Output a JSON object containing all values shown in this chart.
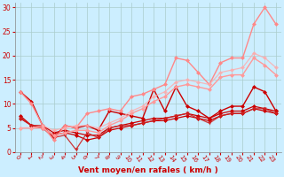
{
  "bg_color": "#cceeff",
  "grid_color": "#aacccc",
  "xlabel": "Vent moyen/en rafales ( km/h )",
  "xlabel_color": "#cc0000",
  "tick_color": "#cc0000",
  "ylim": [
    0,
    31
  ],
  "xlim": [
    -0.5,
    23.5
  ],
  "yticks": [
    0,
    5,
    10,
    15,
    20,
    25,
    30
  ],
  "xticks": [
    0,
    1,
    2,
    3,
    4,
    5,
    6,
    7,
    8,
    9,
    10,
    11,
    12,
    13,
    14,
    15,
    16,
    17,
    18,
    19,
    20,
    21,
    22,
    23
  ],
  "series": [
    {
      "x": [
        0,
        1,
        2,
        3,
        4,
        5,
        6,
        7,
        8,
        9,
        10,
        11,
        12,
        13,
        14,
        15,
        16,
        17,
        18,
        19,
        20,
        21,
        22,
        23
      ],
      "y": [
        12.5,
        10.5,
        5.5,
        3.0,
        5.5,
        5.0,
        5.5,
        4.5,
        8.5,
        8.0,
        7.5,
        7.0,
        13.0,
        8.5,
        13.5,
        9.5,
        8.5,
        7.0,
        8.5,
        9.5,
        9.5,
        13.5,
        12.5,
        8.5
      ],
      "color": "#cc0000",
      "alpha": 1.0,
      "marker": "D",
      "markersize": 2.5,
      "linewidth": 1.0
    },
    {
      "x": [
        0,
        1,
        2,
        3,
        4,
        5,
        6,
        7,
        8,
        9,
        10,
        11,
        12,
        13,
        14,
        15,
        16,
        17,
        18,
        19,
        20,
        21,
        22,
        23
      ],
      "y": [
        7.5,
        5.5,
        5.5,
        4.0,
        4.5,
        4.0,
        3.5,
        3.5,
        5.0,
        5.5,
        6.0,
        6.5,
        7.0,
        7.0,
        7.5,
        8.0,
        7.5,
        7.0,
        8.0,
        8.5,
        8.5,
        9.5,
        9.0,
        8.5
      ],
      "color": "#cc0000",
      "alpha": 1.0,
      "marker": "D",
      "markersize": 2.5,
      "linewidth": 0.9
    },
    {
      "x": [
        0,
        1,
        2,
        3,
        4,
        5,
        6,
        7,
        8,
        9,
        10,
        11,
        12,
        13,
        14,
        15,
        16,
        17,
        18,
        19,
        20,
        21,
        22,
        23
      ],
      "y": [
        7.0,
        5.5,
        5.0,
        3.5,
        4.0,
        3.5,
        2.5,
        3.0,
        4.5,
        5.0,
        5.5,
        6.0,
        6.5,
        6.5,
        7.0,
        7.5,
        7.0,
        6.5,
        7.5,
        8.0,
        8.0,
        9.0,
        8.5,
        8.0
      ],
      "color": "#cc0000",
      "alpha": 1.0,
      "marker": "D",
      "markersize": 2.5,
      "linewidth": 0.9
    },
    {
      "x": [
        0,
        1,
        2,
        3,
        4,
        5,
        6,
        7,
        8,
        9,
        10,
        11,
        12,
        13,
        14,
        15,
        16,
        17,
        18,
        19,
        20,
        21,
        22,
        23
      ],
      "y": [
        7.0,
        5.5,
        5.0,
        3.0,
        3.5,
        0.5,
        4.0,
        3.0,
        5.0,
        5.5,
        5.5,
        6.0,
        6.5,
        7.0,
        7.5,
        8.0,
        7.0,
        6.0,
        7.5,
        8.0,
        8.0,
        9.0,
        9.0,
        8.0
      ],
      "color": "#cc2222",
      "alpha": 0.9,
      "marker": "v",
      "markersize": 3,
      "linewidth": 0.9
    },
    {
      "x": [
        0,
        1,
        2,
        3,
        4,
        5,
        6,
        7,
        8,
        9,
        10,
        11,
        12,
        13,
        14,
        15,
        16,
        17,
        18,
        19,
        20,
        21,
        22,
        23
      ],
      "y": [
        12.5,
        10.0,
        5.5,
        2.5,
        5.5,
        5.0,
        8.0,
        8.5,
        9.0,
        8.5,
        11.5,
        12.0,
        13.0,
        14.0,
        19.5,
        19.0,
        16.5,
        14.0,
        18.5,
        19.5,
        19.5,
        26.5,
        30.0,
        26.5
      ],
      "color": "#ff8888",
      "alpha": 1.0,
      "marker": "D",
      "markersize": 2.5,
      "linewidth": 1.0
    },
    {
      "x": [
        0,
        1,
        2,
        3,
        4,
        5,
        6,
        7,
        8,
        9,
        10,
        11,
        12,
        13,
        14,
        15,
        16,
        17,
        18,
        19,
        20,
        21,
        22,
        23
      ],
      "y": [
        5.0,
        5.0,
        5.0,
        3.5,
        4.0,
        4.5,
        4.5,
        4.0,
        5.5,
        6.5,
        8.0,
        9.0,
        10.5,
        11.5,
        13.5,
        14.0,
        13.5,
        13.0,
        15.5,
        16.0,
        16.0,
        19.5,
        18.0,
        16.0
      ],
      "color": "#ff9999",
      "alpha": 1.0,
      "marker": "D",
      "markersize": 2.5,
      "linewidth": 1.0
    },
    {
      "x": [
        0,
        1,
        2,
        3,
        4,
        5,
        6,
        7,
        8,
        9,
        10,
        11,
        12,
        13,
        14,
        15,
        16,
        17,
        18,
        19,
        20,
        21,
        22,
        23
      ],
      "y": [
        5.0,
        5.0,
        5.5,
        4.5,
        5.0,
        5.5,
        5.5,
        5.0,
        6.0,
        7.0,
        8.5,
        9.5,
        11.5,
        12.5,
        14.5,
        15.0,
        14.5,
        14.0,
        16.5,
        17.0,
        17.5,
        20.5,
        19.5,
        17.5
      ],
      "color": "#ffaaaa",
      "alpha": 0.8,
      "marker": "D",
      "markersize": 2.5,
      "linewidth": 0.9
    }
  ]
}
